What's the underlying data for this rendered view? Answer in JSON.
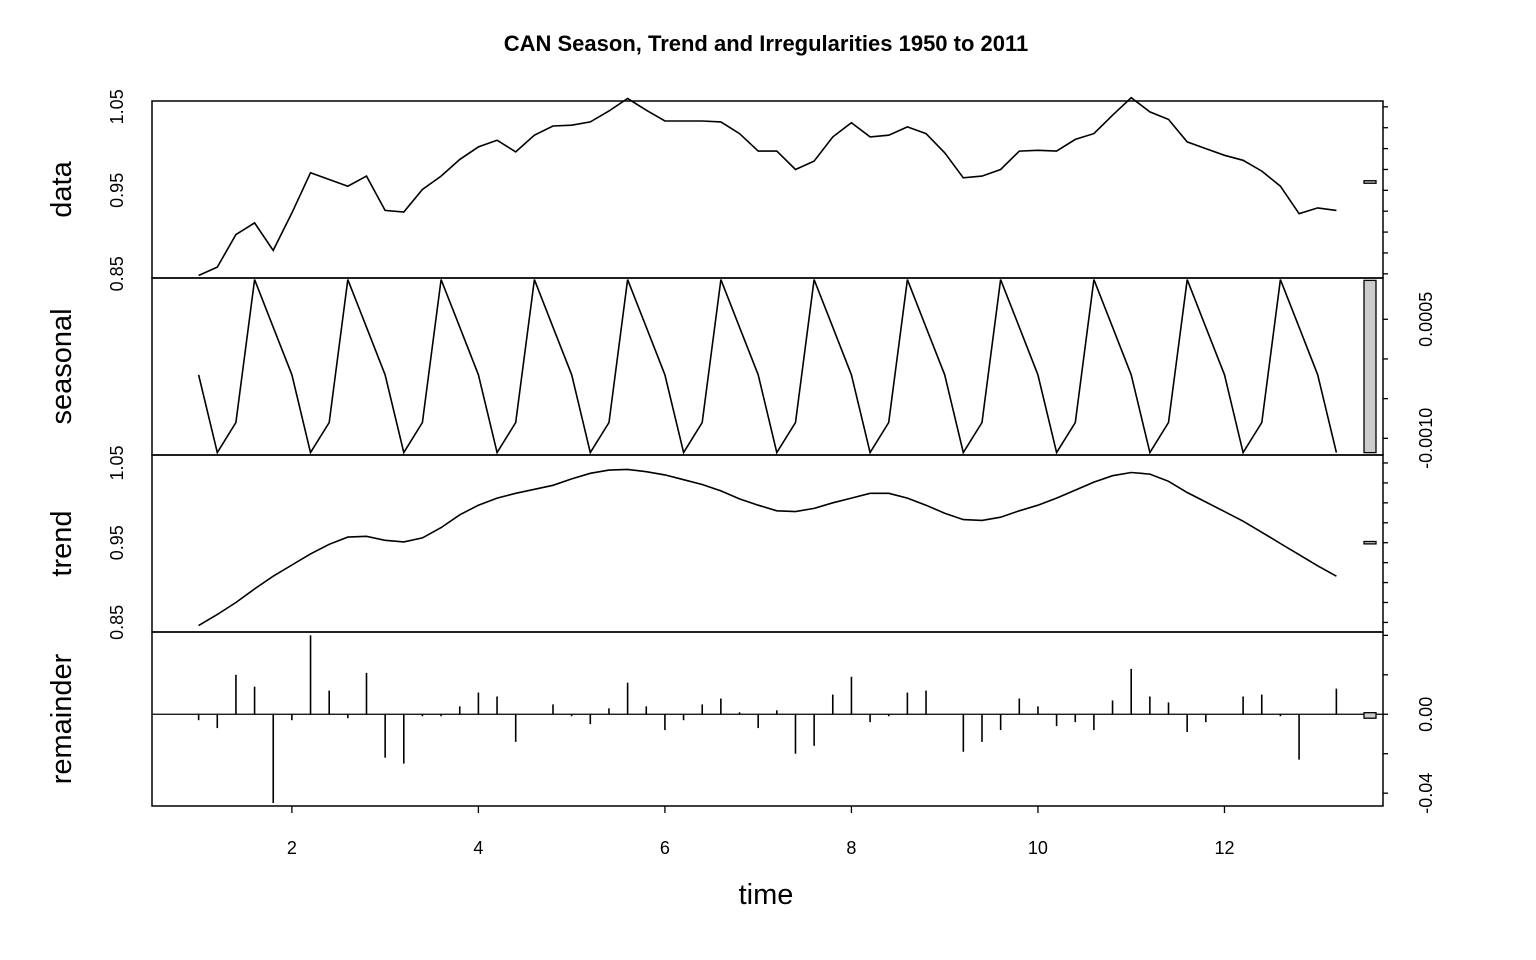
{
  "chart_data": {
    "type": "line",
    "title": "CAN Season, Trend and Irregularities 1950 to 2011",
    "xlabel": "time",
    "xlim": [
      0.5,
      13.7
    ],
    "x_ticks": [
      2,
      4,
      6,
      8,
      10,
      12
    ],
    "x_tick_labels": [
      "2",
      "4",
      "6",
      "8",
      "10",
      "12"
    ],
    "x": [
      1.0,
      1.2,
      1.4,
      1.6,
      1.8,
      2.0,
      2.2,
      2.4,
      2.6,
      2.8,
      3.0,
      3.2,
      3.4,
      3.6,
      3.8,
      4.0,
      4.2,
      4.4,
      4.6,
      4.8,
      5.0,
      5.2,
      5.4,
      5.6,
      5.8,
      6.0,
      6.2,
      6.4,
      6.6,
      6.8,
      7.0,
      7.2,
      7.4,
      7.6,
      7.8,
      8.0,
      8.2,
      8.4,
      8.6,
      8.8,
      9.0,
      9.2,
      9.4,
      9.6,
      9.8,
      10.0,
      10.2,
      10.4,
      10.6,
      10.8,
      11.0,
      11.2,
      11.4,
      11.6,
      11.8,
      12.0,
      12.2,
      12.4,
      12.6,
      12.8,
      13.0,
      13.2
    ],
    "panels": [
      {
        "name": "data",
        "label": "data",
        "style": "line",
        "ylim": [
          0.845,
          1.057
        ],
        "y_ticks": [
          0.85,
          0.95,
          1.05
        ],
        "y_tick_labels": [
          "0.85",
          "0.95",
          "1.05"
        ],
        "minor_ticks": [
          0.85,
          0.875,
          0.9,
          0.925,
          0.95,
          0.975,
          1.0,
          1.025,
          1.05
        ],
        "tick_side": "left",
        "scale_bar": [
          0.9585,
          0.9615
        ],
        "values": [
          0.848,
          0.858,
          0.897,
          0.911,
          0.878,
          0.923,
          0.971,
          0.963,
          0.955,
          0.967,
          0.926,
          0.924,
          0.951,
          0.967,
          0.987,
          1.002,
          1.01,
          0.996,
          1.016,
          1.027,
          1.028,
          1.032,
          1.045,
          1.06,
          1.046,
          1.033,
          1.033,
          1.033,
          1.032,
          1.018,
          0.997,
          0.997,
          0.975,
          0.985,
          1.014,
          1.031,
          1.014,
          1.016,
          1.026,
          1.018,
          0.995,
          0.965,
          0.967,
          0.975,
          0.997,
          0.998,
          0.997,
          1.011,
          1.018,
          1.04,
          1.061,
          1.044,
          1.035,
          1.008,
          1.0,
          0.992,
          0.986,
          0.973,
          0.955,
          0.922,
          0.929,
          0.926
        ]
      },
      {
        "name": "seasonal",
        "label": "seasonal",
        "style": "line",
        "ylim": [
          -0.00121,
          0.00102
        ],
        "y_ticks": [
          0.0005,
          -0.001
        ],
        "y_tick_labels": [
          "0.0005",
          "-0.0010"
        ],
        "minor_ticks": [
          -0.001,
          -0.0005,
          0.0,
          0.0005
        ],
        "tick_side": "right",
        "scale_bar": [
          -0.00118,
          0.00099
        ],
        "cycle_values": [
          -0.00095,
          0.001,
          0.0004,
          -0.0002,
          -0.00118,
          -0.0008
        ],
        "values": [
          -0.0002,
          -0.00118,
          -0.0008,
          0.001,
          0.0004,
          -0.0002,
          -0.00118,
          -0.0008,
          0.001,
          0.0004,
          -0.0002,
          -0.00118,
          -0.0008,
          0.001,
          0.0004,
          -0.0002,
          -0.00118,
          -0.0008,
          0.001,
          0.0004,
          -0.0002,
          -0.00118,
          -0.0008,
          0.001,
          0.0004,
          -0.0002,
          -0.00118,
          -0.0008,
          0.001,
          0.0004,
          -0.0002,
          -0.00118,
          -0.0008,
          0.001,
          0.0004,
          -0.0002,
          -0.00118,
          -0.0008,
          0.001,
          0.0004,
          -0.0002,
          -0.00118,
          -0.0008,
          0.001,
          0.0004,
          -0.0002,
          -0.00118,
          -0.0008,
          0.001,
          0.0004,
          -0.0002,
          -0.00118,
          -0.0008,
          0.001,
          0.0004,
          -0.0002,
          -0.00118,
          -0.0008,
          0.001,
          0.0004,
          -0.0002,
          -0.00118
        ]
      },
      {
        "name": "trend",
        "label": "trend",
        "style": "line",
        "ylim": [
          0.838,
          1.06
        ],
        "y_ticks": [
          0.85,
          0.95,
          1.05
        ],
        "y_tick_labels": [
          "0.85",
          "0.95",
          "1.05"
        ],
        "minor_ticks": [
          0.85,
          0.875,
          0.9,
          0.925,
          0.95,
          0.975,
          1.0,
          1.025,
          1.05
        ],
        "tick_side": "left",
        "scale_bar": [
          0.9485,
          0.9515
        ],
        "values": [
          0.846,
          0.86,
          0.875,
          0.892,
          0.908,
          0.922,
          0.936,
          0.948,
          0.957,
          0.958,
          0.953,
          0.951,
          0.956,
          0.969,
          0.985,
          0.997,
          1.006,
          1.012,
          1.017,
          1.022,
          1.03,
          1.037,
          1.041,
          1.042,
          1.039,
          1.035,
          1.029,
          1.023,
          1.015,
          1.005,
          0.997,
          0.99,
          0.989,
          0.993,
          1.0,
          1.006,
          1.012,
          1.012,
          1.006,
          0.997,
          0.987,
          0.979,
          0.978,
          0.982,
          0.99,
          0.997,
          1.006,
          1.016,
          1.026,
          1.034,
          1.038,
          1.036,
          1.027,
          1.013,
          1.001,
          0.989,
          0.977,
          0.963,
          0.949,
          0.935,
          0.921,
          0.908
        ]
      },
      {
        "name": "remainder",
        "label": "remainder",
        "style": "spikes",
        "ylim": [
          -0.0465,
          0.0417
        ],
        "y_ticks": [
          0.0,
          -0.04
        ],
        "y_tick_labels": [
          "0.00",
          "-0.04"
        ],
        "minor_ticks": [
          -0.04,
          -0.02,
          0.0,
          0.02,
          0.04
        ],
        "tick_side": "right",
        "scale_bar": [
          -0.002,
          0.0008
        ],
        "baseline": 0.0,
        "values": [
          -0.003,
          -0.007,
          0.02,
          0.014,
          -0.045,
          -0.003,
          0.04,
          0.012,
          -0.002,
          0.021,
          -0.022,
          -0.025,
          -0.001,
          -0.001,
          0.004,
          0.011,
          0.009,
          -0.014,
          0.0,
          0.005,
          -0.001,
          -0.005,
          0.003,
          0.016,
          0.004,
          -0.008,
          -0.003,
          0.005,
          0.008,
          0.001,
          -0.007,
          0.002,
          -0.02,
          -0.016,
          0.01,
          0.019,
          -0.004,
          -0.001,
          0.011,
          0.012,
          0.0,
          -0.019,
          -0.014,
          -0.008,
          0.008,
          0.004,
          -0.006,
          -0.004,
          -0.008,
          0.007,
          0.023,
          0.009,
          0.006,
          -0.009,
          -0.004,
          0.0,
          0.009,
          0.01,
          -0.001,
          -0.023,
          0.0,
          0.013
        ]
      }
    ]
  }
}
